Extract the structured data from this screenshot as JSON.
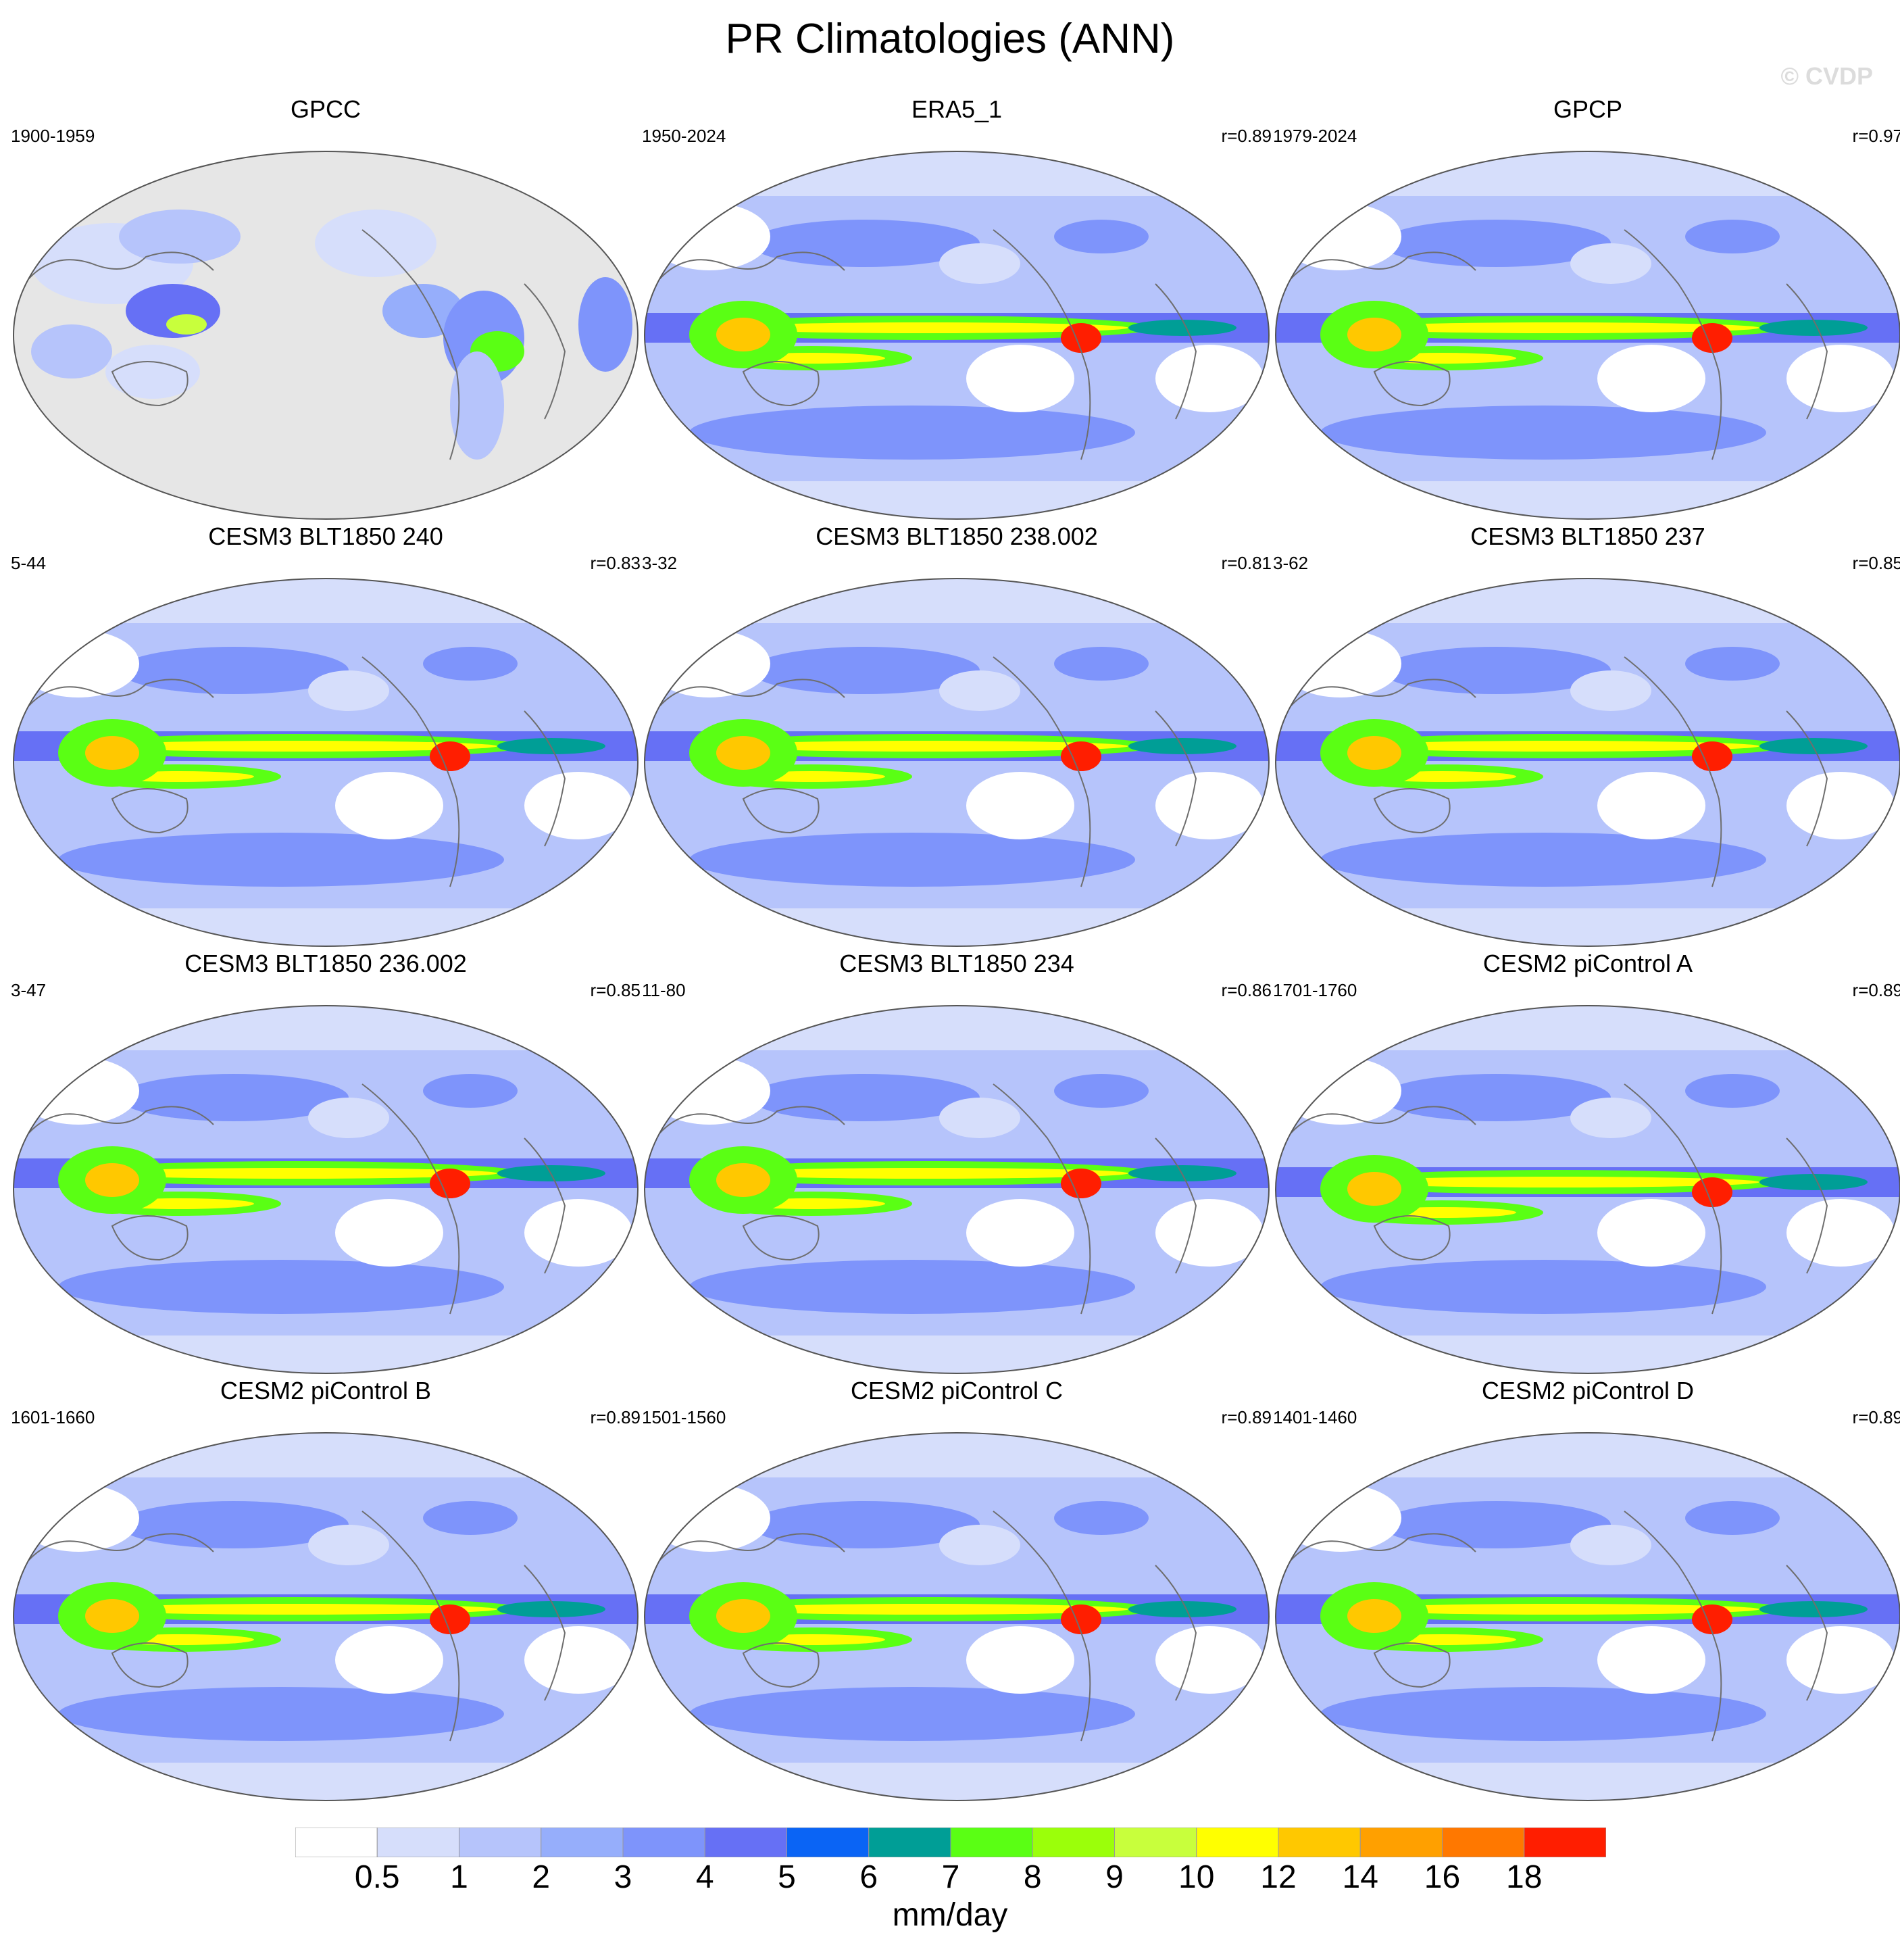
{
  "title": "PR Climatologies (ANN)",
  "watermark": "© CVDP",
  "panels": [
    {
      "title": "GPCC",
      "period": "1900-1959",
      "r": "",
      "style": "obs_land"
    },
    {
      "title": "ERA5_1",
      "period": "1950-2024",
      "r": "r=0.89",
      "style": "obs"
    },
    {
      "title": "GPCP",
      "period": "1979-2024",
      "r": "r=0.97",
      "style": "obs"
    },
    {
      "title": "CESM3 BLT1850 240",
      "period": "5-44",
      "r": "r=0.83",
      "style": "model"
    },
    {
      "title": "CESM3 BLT1850 238.002",
      "period": "3-32",
      "r": "r=0.81",
      "style": "model"
    },
    {
      "title": "CESM3 BLT1850 237",
      "period": "3-62",
      "r": "r=0.85",
      "style": "model"
    },
    {
      "title": "CESM3 BLT1850 236.002",
      "period": "3-47",
      "r": "r=0.85",
      "style": "model"
    },
    {
      "title": "CESM3 BLT1850 234",
      "period": "11-80",
      "r": "r=0.86",
      "style": "model"
    },
    {
      "title": "CESM2 piControl A",
      "period": "1701-1760",
      "r": "r=0.89",
      "style": "model2"
    },
    {
      "title": "CESM2 piControl B",
      "period": "1601-1660",
      "r": "r=0.89",
      "style": "model2"
    },
    {
      "title": "CESM2 piControl C",
      "period": "1501-1560",
      "r": "r=0.89",
      "style": "model2"
    },
    {
      "title": "CESM2 piControl D",
      "period": "1401-1460",
      "r": "r=0.89",
      "style": "model2"
    }
  ],
  "colorbar": {
    "units": "mm/day",
    "labels": [
      "0.5",
      "1",
      "2",
      "3",
      "4",
      "5",
      "6",
      "7",
      "8",
      "9",
      "10",
      "12",
      "14",
      "16",
      "18"
    ],
    "colors": [
      "#ffffff",
      "#d6defb",
      "#b6c4fb",
      "#96aefb",
      "#7e94fb",
      "#6670f5",
      "#0a64f5",
      "#009e96",
      "#5aff14",
      "#9bff0a",
      "#c8ff3c",
      "#ffff00",
      "#ffc800",
      "#ffa000",
      "#ff7800",
      "#ff1e00"
    ]
  },
  "colors": {
    "land_mask": "#e6e6e6",
    "coastline": "#6e6e6e",
    "background_level": "#b6c4fb"
  }
}
